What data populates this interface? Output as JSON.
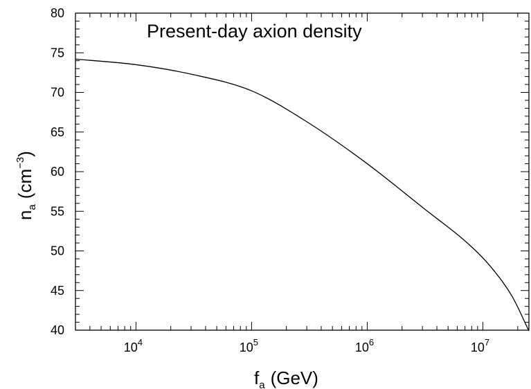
{
  "chart_data": {
    "type": "line",
    "title": "Present-day axion density",
    "xlabel": {
      "main": "f",
      "sub": "a",
      "unit": "(GeV)"
    },
    "ylabel": {
      "main": "n",
      "sub": "a",
      "unit_open": "(cm",
      "unit_sup": "−3",
      "unit_close": ")"
    },
    "x_scale": "log",
    "xlim": [
      3000,
      25000000
    ],
    "ylim": [
      40,
      80
    ],
    "y_ticks": [
      "40",
      "45",
      "50",
      "55",
      "60",
      "65",
      "70",
      "75",
      "80"
    ],
    "x_ticks": [
      {
        "base": "10",
        "exp": "4"
      },
      {
        "base": "10",
        "exp": "5"
      },
      {
        "base": "10",
        "exp": "6"
      },
      {
        "base": "10",
        "exp": "7"
      }
    ],
    "grid": false,
    "series": [
      {
        "x": [
          3000,
          10000,
          30000,
          100000,
          300000,
          1000000,
          3000000,
          8000000,
          12000000,
          18000000,
          25000000
        ],
        "y": [
          74.2,
          73.5,
          72.3,
          70.2,
          66.3,
          61.0,
          55.5,
          50.5,
          47.8,
          44.2,
          39.9
        ]
      }
    ]
  }
}
